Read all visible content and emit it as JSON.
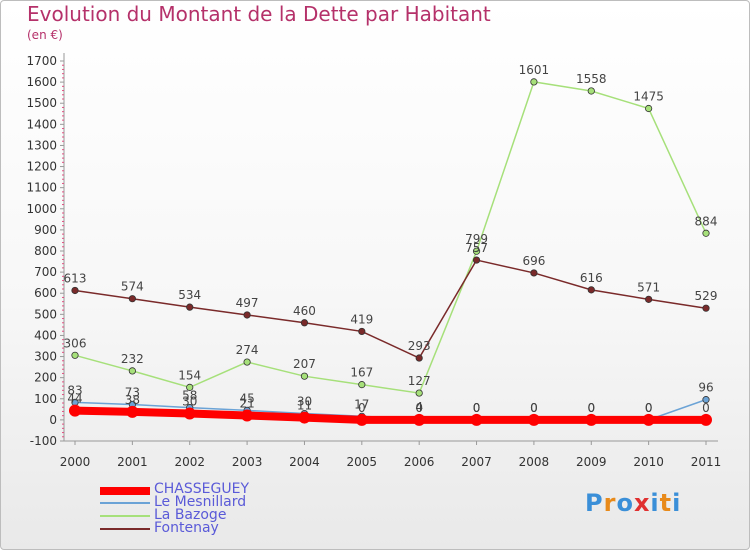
{
  "title": "Evolution du Montant de la Dette par Habitant",
  "subtitle": "(en €)",
  "logo": {
    "text": "Proxiti",
    "letters": [
      "P",
      "r",
      "o",
      "x",
      "i",
      "t",
      "i"
    ],
    "colors": [
      "#3a8fd8",
      "#e88a1a",
      "#3a8fd8",
      "#e03030",
      "#3a8fd8",
      "#e88a1a",
      "#3a8fd8"
    ]
  },
  "chart_data": {
    "type": "line",
    "categories": [
      "2000",
      "2001",
      "2002",
      "2003",
      "2004",
      "2005",
      "2006",
      "2007",
      "2008",
      "2009",
      "2010",
      "2011"
    ],
    "y_ticks": [
      "-100",
      "0",
      "100",
      "200",
      "300",
      "400",
      "500",
      "600",
      "700",
      "800",
      "900",
      "1000",
      "1100",
      "1200",
      "1300",
      "1400",
      "1500",
      "1600",
      "1700"
    ],
    "ylim": [
      -100,
      1700
    ],
    "grid": false,
    "legend_position": "bottom-left",
    "series": [
      {
        "name": "CHASSEGUEY",
        "color": "#ff0000",
        "thick": true,
        "values": [
          44,
          38,
          30,
          21,
          11,
          0,
          0,
          0,
          0,
          0,
          0,
          0
        ],
        "labels": [
          "44",
          "38",
          "30",
          "21",
          "11",
          "0",
          "0",
          "0",
          "0",
          "0",
          "0",
          "0"
        ]
      },
      {
        "name": "Le Mesnillard",
        "color": "#6ba3d6",
        "values": [
          83,
          73,
          58,
          45,
          30,
          17,
          4,
          0,
          0,
          0,
          0,
          96
        ],
        "labels": [
          "83",
          "73",
          "58",
          "45",
          "30",
          "17",
          "4",
          "0",
          "0",
          "0",
          "0",
          "96"
        ]
      },
      {
        "name": "La Bazoge",
        "color": "#a6e07a",
        "values": [
          306,
          232,
          154,
          274,
          207,
          167,
          127,
          799,
          1601,
          1558,
          1475,
          884
        ],
        "labels": [
          "306",
          "232",
          "154",
          "274",
          "207",
          "167",
          "127",
          "799",
          "1601",
          "1558",
          "1475",
          "884"
        ]
      },
      {
        "name": "Fontenay",
        "color": "#7a2a2a",
        "values": [
          613,
          574,
          534,
          497,
          460,
          419,
          293,
          757,
          696,
          616,
          571,
          529
        ],
        "labels": [
          "613",
          "574",
          "534",
          "497",
          "460",
          "419",
          "293",
          "757",
          "696",
          "616",
          "571",
          "529"
        ]
      }
    ]
  }
}
